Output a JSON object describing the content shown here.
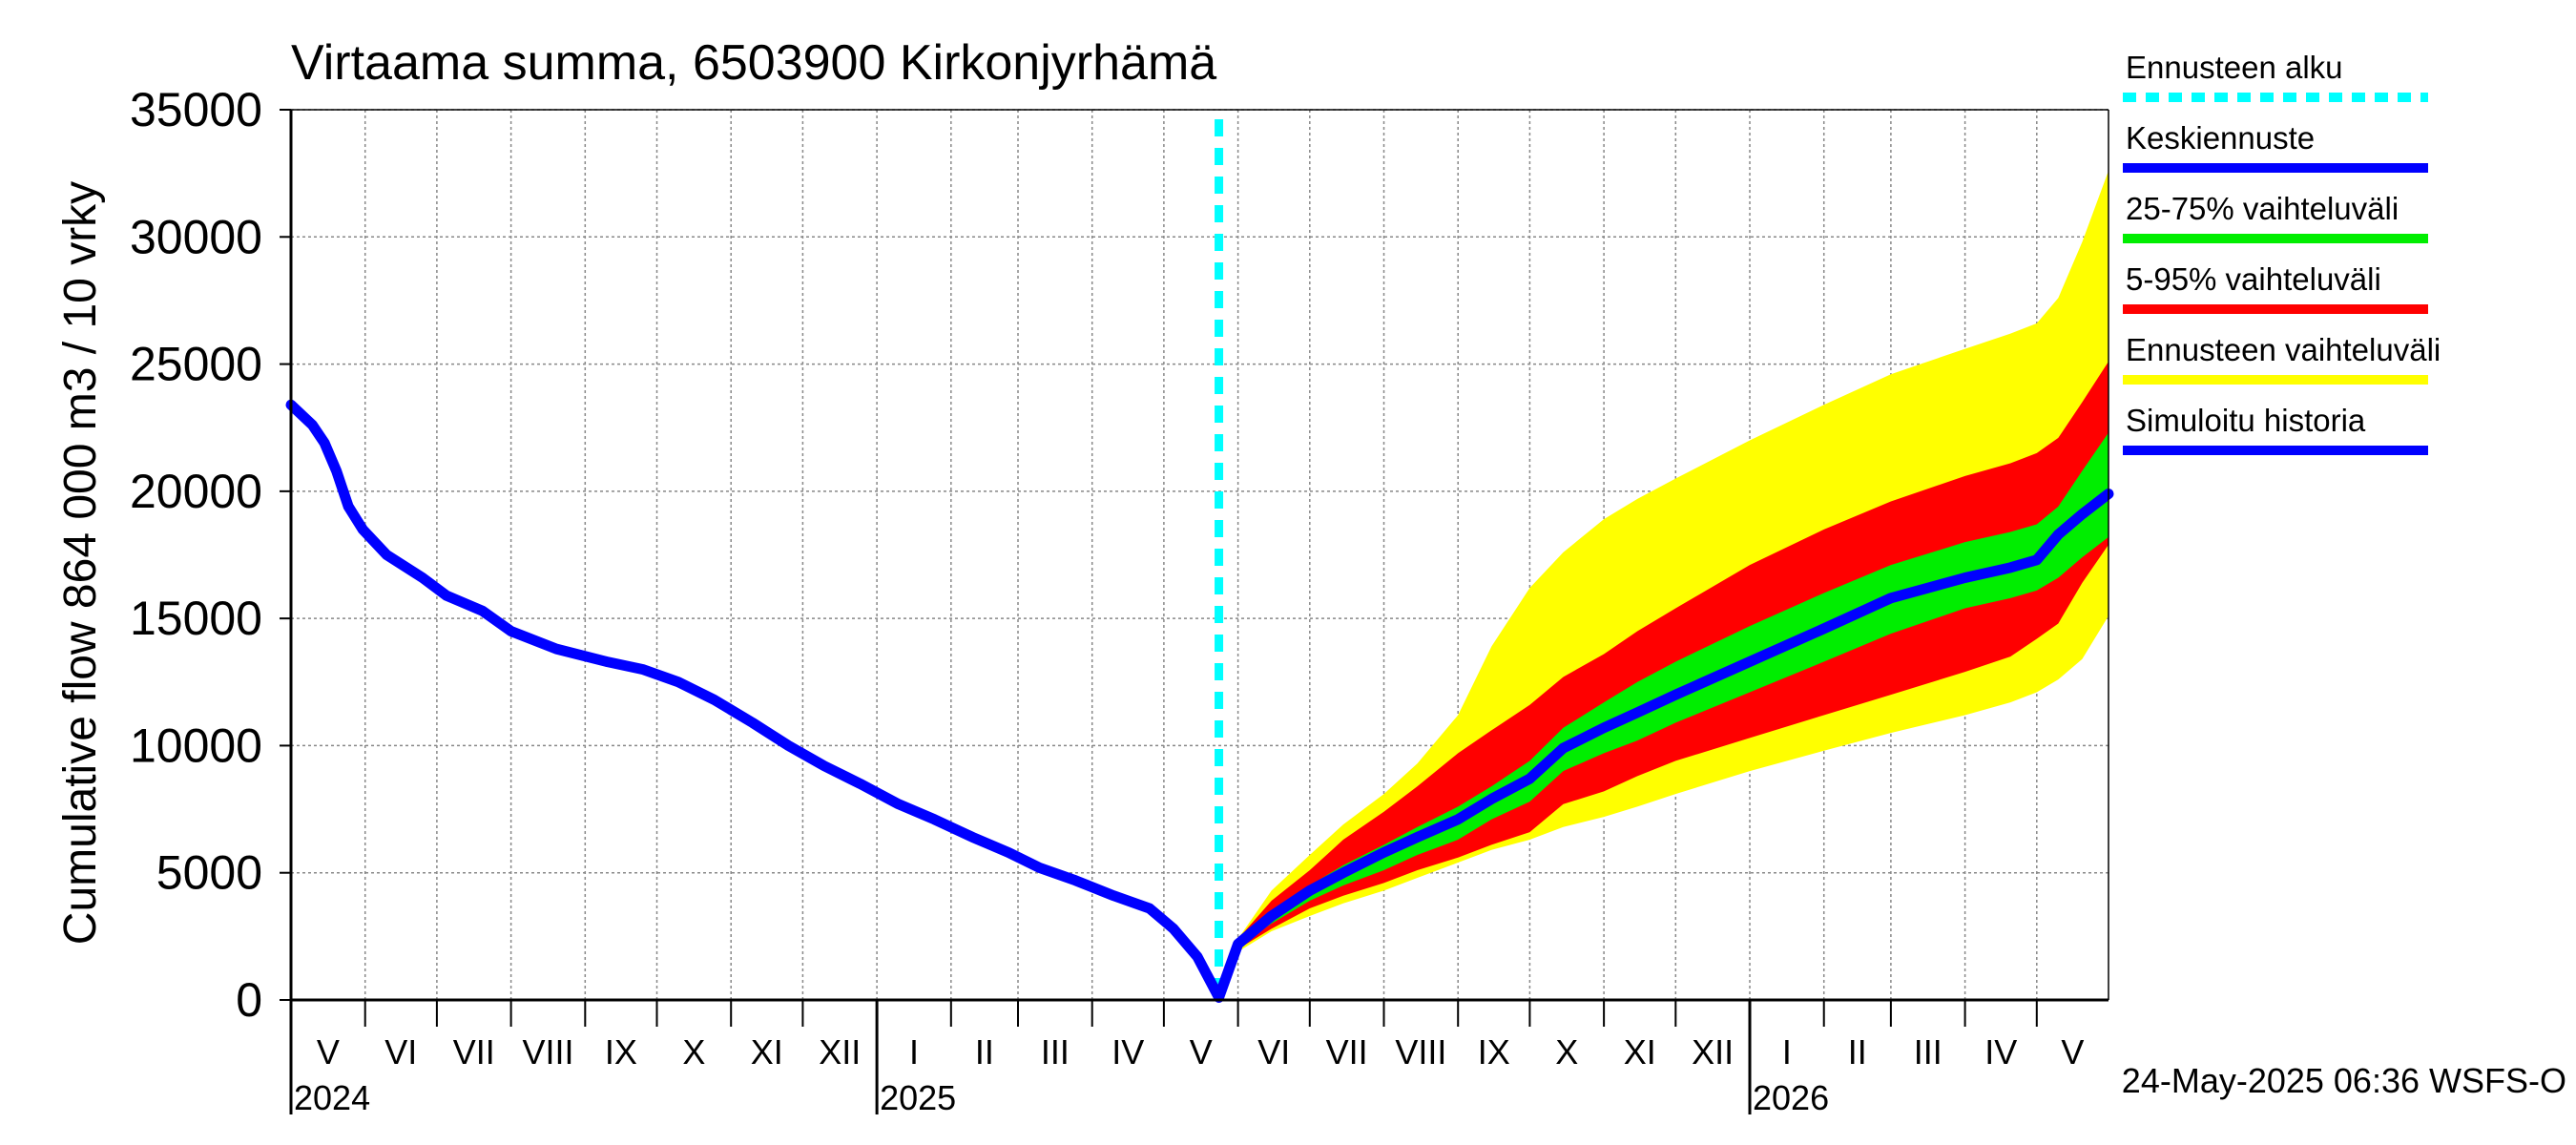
{
  "chart_data": {
    "type": "area",
    "title": "Virtaama summa, 6503900 Kirkonjyrhämä",
    "ylabel": "Cumulative flow    864 000 m3 / 10 vrky",
    "ylim": [
      0,
      35000
    ],
    "yticks": [
      "0",
      "5000",
      "10000",
      "15000",
      "20000",
      "25000",
      "30000",
      "35000"
    ],
    "xlim": [
      "2024-05-01",
      "2026-05-31"
    ],
    "month_ticks": [
      "2024-05-01",
      "2024-06-01",
      "2024-07-01",
      "2024-08-01",
      "2024-09-01",
      "2024-10-01",
      "2024-11-01",
      "2024-12-01",
      "2025-01-01",
      "2025-02-01",
      "2025-03-01",
      "2025-04-01",
      "2025-05-01",
      "2025-06-01",
      "2025-07-01",
      "2025-08-01",
      "2025-09-01",
      "2025-10-01",
      "2025-11-01",
      "2025-12-01",
      "2026-01-01",
      "2026-02-01",
      "2026-03-01",
      "2026-04-01",
      "2026-05-01"
    ],
    "month_labels": [
      "V",
      "VI",
      "VII",
      "VIII",
      "IX",
      "X",
      "XI",
      "XII",
      "I",
      "II",
      "III",
      "IV",
      "V",
      "VI",
      "VII",
      "VIII",
      "IX",
      "X",
      "XI",
      "XII",
      "I",
      "II",
      "III",
      "IV",
      "V"
    ],
    "year_labels": [
      {
        "date": "2024-05-01",
        "label": "2024"
      },
      {
        "date": "2025-01-01",
        "label": "2025"
      },
      {
        "date": "2026-01-01",
        "label": "2026"
      }
    ],
    "forecast_start": "2025-05-24",
    "history": {
      "name": "Simuloitu historia",
      "color": "#0000ff",
      "x": [
        "2024-05-01",
        "2024-05-10",
        "2024-05-15",
        "2024-05-20",
        "2024-05-25",
        "2024-05-31",
        "2024-06-10",
        "2024-06-25",
        "2024-07-05",
        "2024-07-20",
        "2024-08-01",
        "2024-08-20",
        "2024-09-10",
        "2024-09-25",
        "2024-10-10",
        "2024-10-25",
        "2024-11-10",
        "2024-11-25",
        "2024-12-10",
        "2024-12-25",
        "2025-01-10",
        "2025-01-25",
        "2025-02-10",
        "2025-02-25",
        "2025-03-10",
        "2025-03-25",
        "2025-04-10",
        "2025-04-25",
        "2025-05-05",
        "2025-05-15",
        "2025-05-24"
      ],
      "y": [
        23400,
        22600,
        21900,
        20800,
        19400,
        18500,
        17500,
        16600,
        15900,
        15300,
        14500,
        13800,
        13300,
        13000,
        12500,
        11800,
        10900,
        10000,
        9200,
        8500,
        7700,
        7100,
        6400,
        5800,
        5200,
        4700,
        4100,
        3600,
        2800,
        1700,
        100
      ]
    },
    "forecast": {
      "x": [
        "2025-05-24",
        "2025-06-01",
        "2025-06-15",
        "2025-07-01",
        "2025-07-15",
        "2025-08-01",
        "2025-08-15",
        "2025-09-01",
        "2025-09-15",
        "2025-10-01",
        "2025-10-15",
        "2025-11-01",
        "2025-11-15",
        "2025-12-01",
        "2026-01-01",
        "2026-02-01",
        "2026-03-01",
        "2026-04-01",
        "2026-04-20",
        "2026-05-01",
        "2026-05-10",
        "2026-05-20",
        "2026-05-31"
      ],
      "series": [
        {
          "name": "Ennusteen vaihteluväli (max)",
          "color": "#ffff00",
          "values": [
            100,
            2400,
            4300,
            5700,
            6900,
            8100,
            9300,
            11200,
            13900,
            16200,
            17600,
            18900,
            19700,
            20500,
            22000,
            23400,
            24600,
            25600,
            26200,
            26600,
            27600,
            29800,
            32600
          ]
        },
        {
          "name": "5-95% vaihteluväli (upper)",
          "color": "#ff0000",
          "values": [
            100,
            2400,
            3900,
            5100,
            6300,
            7400,
            8400,
            9700,
            10600,
            11600,
            12700,
            13600,
            14500,
            15400,
            17100,
            18500,
            19600,
            20600,
            21100,
            21500,
            22100,
            23500,
            25100
          ]
        },
        {
          "name": "25-75% vaihteluväli (upper)",
          "color": "#00ee00",
          "values": [
            100,
            2300,
            3500,
            4500,
            5300,
            6100,
            6800,
            7600,
            8400,
            9400,
            10700,
            11700,
            12500,
            13300,
            14700,
            16000,
            17100,
            18000,
            18400,
            18700,
            19400,
            20800,
            22300
          ]
        },
        {
          "name": "Keskiennuste",
          "color": "#0000ff",
          "values": [
            100,
            2200,
            3300,
            4300,
            5000,
            5800,
            6400,
            7100,
            7900,
            8700,
            9900,
            10700,
            11300,
            12000,
            13300,
            14600,
            15800,
            16600,
            17000,
            17300,
            18300,
            19100,
            19900
          ]
        },
        {
          "name": "25-75% vaihteluväli (lower)",
          "color": "#00ee00",
          "values": [
            100,
            2100,
            3000,
            3900,
            4500,
            5100,
            5700,
            6300,
            7100,
            7800,
            9000,
            9700,
            10200,
            10900,
            12100,
            13300,
            14400,
            15400,
            15800,
            16100,
            16600,
            17400,
            18200
          ]
        },
        {
          "name": "5-95% vaihteluväli (lower)",
          "color": "#ff0000",
          "values": [
            100,
            2000,
            2800,
            3600,
            4100,
            4600,
            5100,
            5600,
            6100,
            6600,
            7700,
            8200,
            8800,
            9400,
            10300,
            11200,
            12000,
            12900,
            13500,
            14200,
            14800,
            16400,
            17900
          ]
        },
        {
          "name": "Ennusteen vaihteluväli (min)",
          "color": "#ffff00",
          "values": [
            100,
            1900,
            2700,
            3300,
            3800,
            4300,
            4800,
            5400,
            5900,
            6300,
            6800,
            7200,
            7600,
            8100,
            9000,
            9800,
            10500,
            11200,
            11700,
            12100,
            12600,
            13400,
            15100
          ]
        }
      ]
    },
    "legend": [
      {
        "label": "Ennusteen alku",
        "color": "#00ffff",
        "style": "dashed"
      },
      {
        "label": "Keskiennuste",
        "color": "#0000ff",
        "style": "solid"
      },
      {
        "label": "25-75% vaihteluväli",
        "color": "#00ee00",
        "style": "solid"
      },
      {
        "label": "5-95% vaihteluväli",
        "color": "#ff0000",
        "style": "solid"
      },
      {
        "label": "Ennusteen vaihteluväli",
        "color": "#ffff00",
        "style": "solid"
      },
      {
        "label": "Simuloitu historia",
        "color": "#0000ff",
        "style": "solid"
      }
    ],
    "legend_position": "right",
    "grid": true
  },
  "footer": "24-May-2025 06:36 WSFS-O"
}
